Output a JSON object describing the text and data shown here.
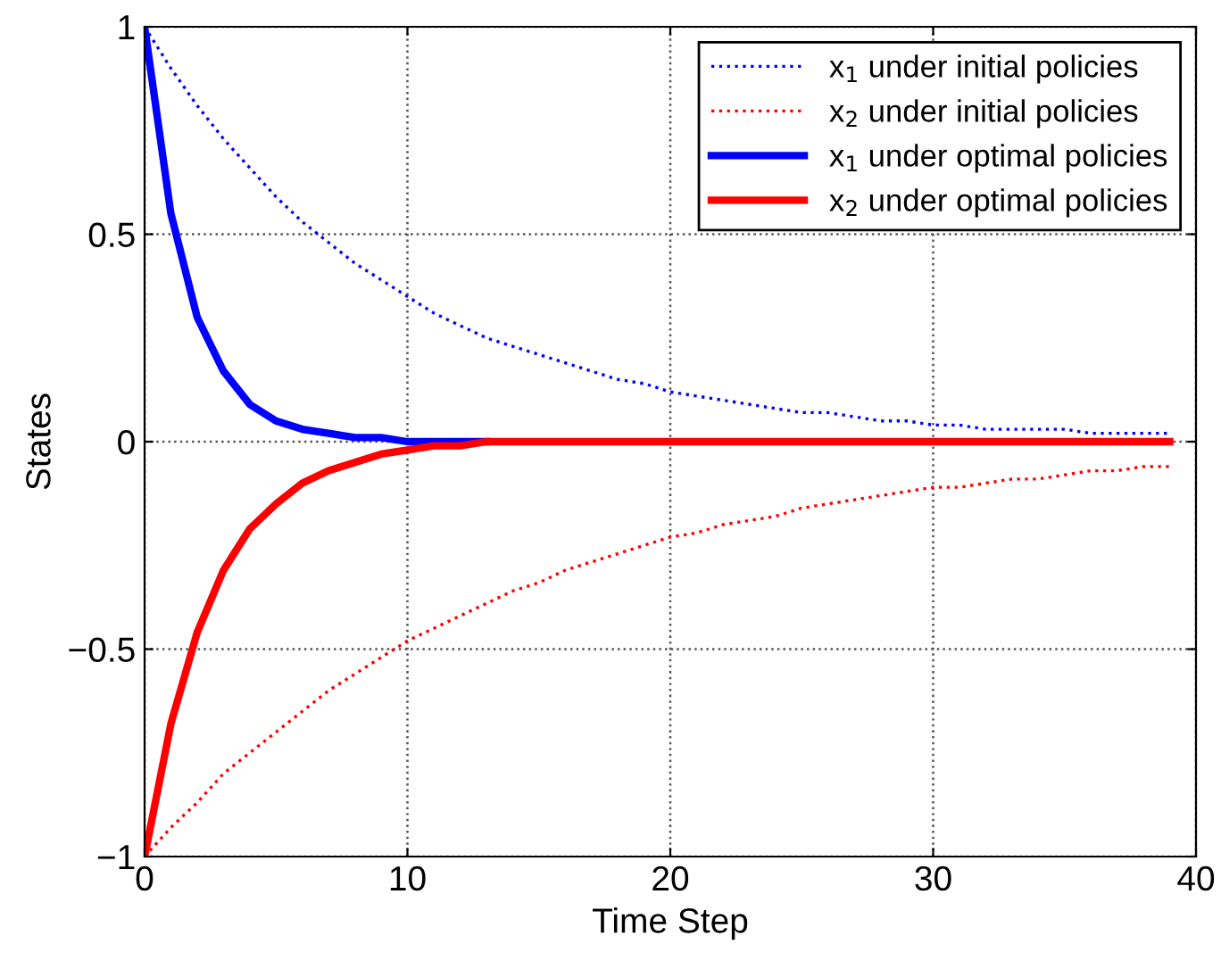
{
  "chart_data": {
    "type": "line",
    "xlabel": "Time Step",
    "ylabel": "States",
    "x": [
      0,
      1,
      2,
      3,
      4,
      5,
      6,
      7,
      8,
      9,
      10,
      11,
      12,
      13,
      14,
      15,
      16,
      17,
      18,
      19,
      20,
      21,
      22,
      23,
      24,
      25,
      26,
      27,
      28,
      29,
      30,
      31,
      32,
      33,
      34,
      35,
      36,
      37,
      38,
      39
    ],
    "series": [
      {
        "name": "x$_{1}$ under initial policies",
        "color": "#0000ff",
        "line_style": "dotted",
        "values": [
          1,
          0.9,
          0.81,
          0.73,
          0.66,
          0.59,
          0.53,
          0.48,
          0.43,
          0.39,
          0.35,
          0.31,
          0.28,
          0.25,
          0.23,
          0.21,
          0.19,
          0.17,
          0.15,
          0.14,
          0.12,
          0.11,
          0.1,
          0.09,
          0.08,
          0.07,
          0.07,
          0.06,
          0.05,
          0.05,
          0.04,
          0.04,
          0.03,
          0.03,
          0.03,
          0.03,
          0.02,
          0.02,
          0.02,
          0.02
        ]
      },
      {
        "name": "x$_{2}$ under initial policies",
        "color": "#ff0000",
        "line_style": "dotted",
        "values": [
          -1,
          -0.93,
          -0.87,
          -0.8,
          -0.75,
          -0.7,
          -0.65,
          -0.6,
          -0.56,
          -0.52,
          -0.48,
          -0.45,
          -0.42,
          -0.39,
          -0.36,
          -0.34,
          -0.31,
          -0.29,
          -0.27,
          -0.25,
          -0.23,
          -0.22,
          -0.2,
          -0.19,
          -0.18,
          -0.16,
          -0.15,
          -0.14,
          -0.13,
          -0.12,
          -0.11,
          -0.11,
          -0.1,
          -0.09,
          -0.09,
          -0.08,
          -0.07,
          -0.07,
          -0.06,
          -0.06
        ]
      },
      {
        "name": "x$_{1}$ under optimal policies",
        "color": "#0000ff",
        "line_style": "solid",
        "values": [
          1,
          0.55,
          0.3,
          0.17,
          0.09,
          0.05,
          0.03,
          0.02,
          0.01,
          0.01,
          0,
          0,
          0,
          0,
          null,
          null,
          null,
          null,
          null,
          null,
          null,
          null,
          null,
          null,
          null,
          null,
          null,
          null,
          null,
          null,
          null,
          null,
          null,
          null,
          null,
          null,
          null,
          null,
          null,
          null
        ]
      },
      {
        "name": "x$_{2}$ under optimal policies",
        "color": "#ff0000",
        "line_style": "solid",
        "values": [
          -1,
          -0.68,
          -0.46,
          -0.31,
          -0.21,
          -0.15,
          -0.1,
          -0.07,
          -0.05,
          -0.03,
          -0.02,
          -0.01,
          -0.01,
          0,
          0,
          0,
          0,
          0,
          0,
          0,
          0,
          0,
          0,
          0,
          0,
          0,
          0,
          0,
          0,
          0,
          0,
          0,
          0,
          0,
          0,
          0,
          0,
          0,
          0,
          0
        ]
      }
    ],
    "xlim": [
      0,
      40
    ],
    "xticks": [
      0,
      10,
      20,
      30,
      40
    ],
    "ylim": [
      -1,
      1
    ],
    "yticks": [
      {
        "value": -1,
        "label": "−1"
      },
      {
        "value": -0.5,
        "label": "−0.5"
      },
      0,
      0.5,
      1
    ],
    "grid": true,
    "legend": "top right"
  }
}
